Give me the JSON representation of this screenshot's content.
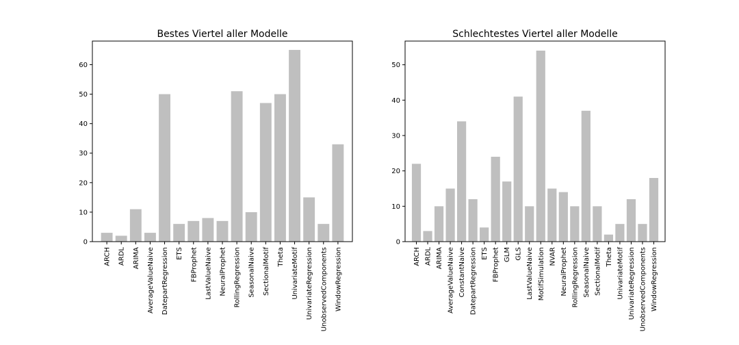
{
  "chart_data": [
    {
      "type": "bar",
      "title": "Bestes Viertel aller Modelle",
      "categories": [
        "ARCH",
        "ARDL",
        "ARIMA",
        "AverageValueNaive",
        "DatepartRegression",
        "ETS",
        "FBProphet",
        "LastValueNaive",
        "NeuralProphet",
        "RollingRegression",
        "SeasonalNaive",
        "SectionalMotif",
        "Theta",
        "UnivariateMotif",
        "UnivariateRegression",
        "UnobservedComponents",
        "WindowRegression"
      ],
      "values": [
        3,
        2,
        11,
        3,
        50,
        6,
        7,
        8,
        7,
        51,
        10,
        47,
        50,
        65,
        15,
        6,
        33
      ],
      "ylim": [
        0,
        68
      ],
      "yticks": [
        0,
        10,
        20,
        30,
        40,
        50,
        60
      ],
      "bar_color": "#bfbfbf",
      "grid": false
    },
    {
      "type": "bar",
      "title": "Schlechtestes Viertel aller Modelle",
      "categories": [
        "ARCH",
        "ARDL",
        "ARIMA",
        "AverageValueNaive",
        "ConstantNaive",
        "DatepartRegression",
        "ETS",
        "FBProphet",
        "GLM",
        "GLS",
        "LastValueNaive",
        "MotifSimulation",
        "NVAR",
        "NeuralProphet",
        "RollingRegression",
        "SeasonalNaive",
        "SectionalMotif",
        "Theta",
        "UnivariateMotif",
        "UnivariateRegression",
        "UnobservedComponents",
        "WindowRegression"
      ],
      "values": [
        22,
        3,
        10,
        15,
        34,
        12,
        4,
        24,
        17,
        41,
        10,
        54,
        15,
        14,
        10,
        37,
        10,
        2,
        5,
        12,
        5,
        18
      ],
      "ylim": [
        0,
        56.7
      ],
      "yticks": [
        0,
        10,
        20,
        30,
        40,
        50
      ],
      "bar_color": "#bfbfbf",
      "grid": false
    }
  ]
}
